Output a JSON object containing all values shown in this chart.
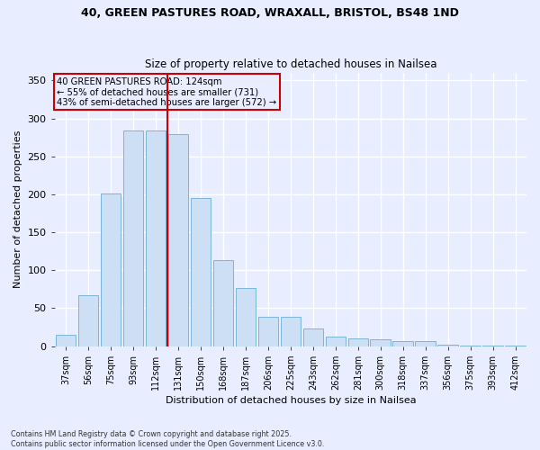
{
  "title_line1": "40, GREEN PASTURES ROAD, WRAXALL, BRISTOL, BS48 1ND",
  "title_line2": "Size of property relative to detached houses in Nailsea",
  "xlabel": "Distribution of detached houses by size in Nailsea",
  "ylabel": "Number of detached properties",
  "categories": [
    "37sqm",
    "56sqm",
    "75sqm",
    "93sqm",
    "112sqm",
    "131sqm",
    "150sqm",
    "168sqm",
    "187sqm",
    "206sqm",
    "225sqm",
    "243sqm",
    "262sqm",
    "281sqm",
    "300sqm",
    "318sqm",
    "337sqm",
    "356sqm",
    "375sqm",
    "393sqm",
    "412sqm"
  ],
  "values": [
    15,
    67,
    201,
    284,
    284,
    279,
    195,
    113,
    76,
    38,
    38,
    23,
    12,
    10,
    9,
    6,
    7,
    2,
    1,
    1,
    1
  ],
  "bar_color": "#ccdff5",
  "bar_edge_color": "#7ab5d8",
  "vline_x_index": 5,
  "vline_color": "#cc0000",
  "annotation_title": "40 GREEN PASTURES ROAD: 124sqm",
  "annotation_line2": "← 55% of detached houses are smaller (731)",
  "annotation_line3": "43% of semi-detached houses are larger (572) →",
  "annotation_box_color": "#cc0000",
  "ylim": [
    0,
    360
  ],
  "yticks": [
    0,
    50,
    100,
    150,
    200,
    250,
    300,
    350
  ],
  "footer_line1": "Contains HM Land Registry data © Crown copyright and database right 2025.",
  "footer_line2": "Contains public sector information licensed under the Open Government Licence v3.0.",
  "background_color": "#e8eeff",
  "grid_color": "#ffffff"
}
